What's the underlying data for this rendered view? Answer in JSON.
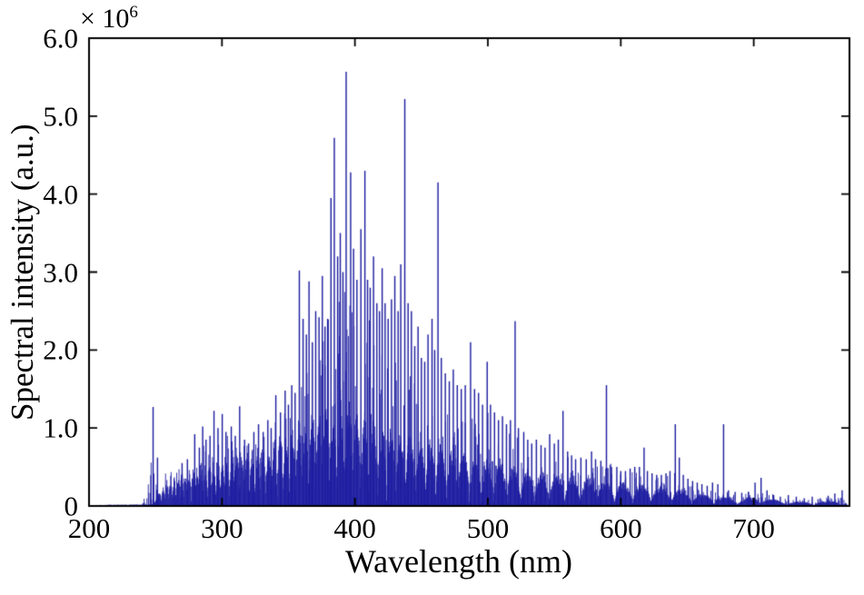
{
  "chart_data": {
    "type": "line",
    "subtype": "emission-spectrum",
    "title": "",
    "xlabel": "Wavelength (nm)",
    "ylabel": "Spectral intensity (a.u.)",
    "xlim": [
      200,
      772
    ],
    "ylim": [
      0,
      6000000
    ],
    "x_ticks": [
      200,
      300,
      400,
      500,
      600,
      700
    ],
    "x_tick_labels": [
      "200",
      "300",
      "400",
      "500",
      "600",
      "700"
    ],
    "y_ticks": [
      0,
      1000000,
      2000000,
      3000000,
      4000000,
      5000000,
      6000000
    ],
    "y_tick_labels": [
      "0",
      "1.0",
      "2.0",
      "3.0",
      "4.0",
      "5.0",
      "6.0"
    ],
    "y_multiplier": {
      "base": "× 10",
      "exponent": "6"
    },
    "grid": false,
    "legend": null,
    "line_color": "#1c1ca0",
    "frame_color": "#000000",
    "background_color": "#ffffff",
    "intensity_unit_scale": 1000000,
    "envelope": {
      "x": [
        204,
        240,
        248,
        252,
        256,
        260,
        270,
        280,
        290,
        300,
        310,
        320,
        330,
        340,
        350,
        360,
        370,
        380,
        390,
        400,
        410,
        420,
        430,
        440,
        450,
        460,
        470,
        480,
        490,
        500,
        510,
        520,
        530,
        540,
        550,
        560,
        570,
        580,
        590,
        600,
        610,
        620,
        630,
        640,
        650,
        660,
        670,
        680,
        690,
        700,
        710,
        720,
        730,
        740,
        750,
        760,
        772
      ],
      "continuum": [
        0.01,
        0.015,
        0.02,
        0.12,
        0.25,
        0.3,
        0.36,
        0.42,
        0.48,
        0.52,
        0.55,
        0.6,
        0.66,
        0.74,
        0.86,
        0.96,
        1.04,
        1.1,
        1.16,
        1.1,
        1.0,
        0.92,
        0.86,
        0.8,
        0.75,
        0.7,
        0.65,
        0.6,
        0.56,
        0.52,
        0.48,
        0.44,
        0.4,
        0.38,
        0.36,
        0.34,
        0.32,
        0.3,
        0.28,
        0.26,
        0.25,
        0.23,
        0.21,
        0.2,
        0.17,
        0.14,
        0.12,
        0.1,
        0.08,
        0.1,
        0.09,
        0.06,
        0.05,
        0.05,
        0.05,
        0.06,
        0.04
      ],
      "spike_max": [
        0.02,
        0.03,
        1.3,
        0.65,
        0.6,
        0.65,
        0.7,
        1.0,
        1.25,
        1.25,
        1.3,
        1.0,
        1.1,
        1.5,
        1.6,
        3.0,
        2.6,
        4.2,
        5.5,
        3.6,
        4.0,
        3.1,
        3.0,
        3.0,
        2.3,
        2.6,
        1.8,
        1.6,
        1.9,
        1.9,
        1.2,
        1.6,
        1.0,
        0.9,
        0.95,
        1.0,
        0.75,
        0.75,
        0.9,
        0.6,
        0.65,
        0.55,
        0.5,
        0.7,
        0.45,
        0.35,
        0.4,
        0.3,
        0.25,
        0.32,
        0.3,
        0.16,
        0.15,
        0.13,
        0.13,
        0.2,
        0.18
      ]
    },
    "peaks": [
      [
        248.2,
        1.27
      ],
      [
        251.5,
        0.62
      ],
      [
        270,
        0.55
      ],
      [
        274,
        0.6
      ],
      [
        279.5,
        0.92
      ],
      [
        283,
        0.75
      ],
      [
        285.5,
        1.02
      ],
      [
        288,
        0.85
      ],
      [
        291,
        0.9
      ],
      [
        294,
        1.22
      ],
      [
        297,
        1.0
      ],
      [
        300.2,
        1.18
      ],
      [
        303,
        0.95
      ],
      [
        307,
        1.02
      ],
      [
        310,
        0.9
      ],
      [
        313.3,
        1.28
      ],
      [
        317,
        0.85
      ],
      [
        320,
        0.8
      ],
      [
        324,
        0.95
      ],
      [
        327.5,
        1.05
      ],
      [
        331,
        0.95
      ],
      [
        334.5,
        1.1
      ],
      [
        337,
        1.0
      ],
      [
        340.5,
        1.42
      ],
      [
        344,
        1.2
      ],
      [
        347.5,
        1.48
      ],
      [
        350,
        1.3
      ],
      [
        352.5,
        1.55
      ],
      [
        355,
        1.45
      ],
      [
        358.2,
        3.02
      ],
      [
        361,
        2.4
      ],
      [
        363.5,
        2.2
      ],
      [
        365.5,
        2.88
      ],
      [
        368,
        2.1
      ],
      [
        370.5,
        2.5
      ],
      [
        373,
        2.42
      ],
      [
        375.5,
        2.95
      ],
      [
        377.5,
        2.3
      ],
      [
        379.5,
        2.4
      ],
      [
        382,
        3.95
      ],
      [
        384.5,
        4.72
      ],
      [
        387,
        3.2
      ],
      [
        389,
        3.5
      ],
      [
        391,
        3.0
      ],
      [
        393.4,
        5.57
      ],
      [
        396.8,
        4.28
      ],
      [
        399,
        3.3
      ],
      [
        401.5,
        2.9
      ],
      [
        404.5,
        3.55
      ],
      [
        407.5,
        4.3
      ],
      [
        409.5,
        2.9
      ],
      [
        411.5,
        2.8
      ],
      [
        414,
        3.2
      ],
      [
        416.5,
        2.6
      ],
      [
        418.5,
        2.5
      ],
      [
        420.5,
        3.05
      ],
      [
        422.7,
        2.6
      ],
      [
        425,
        2.4
      ],
      [
        427.5,
        2.65
      ],
      [
        430,
        2.95
      ],
      [
        432.5,
        2.5
      ],
      [
        434.5,
        3.1
      ],
      [
        437.5,
        5.22
      ],
      [
        440,
        2.6
      ],
      [
        442.5,
        2.5
      ],
      [
        445,
        2.05
      ],
      [
        447.5,
        2.3
      ],
      [
        450,
        1.9
      ],
      [
        452.5,
        1.85
      ],
      [
        455,
        2.2
      ],
      [
        458,
        2.4
      ],
      [
        460,
        2.0
      ],
      [
        462.5,
        4.15
      ],
      [
        465,
        1.9
      ],
      [
        468,
        1.7
      ],
      [
        471,
        1.6
      ],
      [
        474,
        1.75
      ],
      [
        477,
        1.55
      ],
      [
        480,
        1.5
      ],
      [
        483,
        1.55
      ],
      [
        487,
        2.1
      ],
      [
        490,
        1.5
      ],
      [
        493,
        1.45
      ],
      [
        496,
        1.3
      ],
      [
        499.5,
        1.85
      ],
      [
        502,
        1.3
      ],
      [
        505,
        1.2
      ],
      [
        508,
        1.1
      ],
      [
        511,
        1.15
      ],
      [
        514,
        1.05
      ],
      [
        517,
        1.1
      ],
      [
        520.5,
        2.37
      ],
      [
        523,
        1.0
      ],
      [
        527,
        0.95
      ],
      [
        530,
        0.85
      ],
      [
        533,
        0.8
      ],
      [
        536.5,
        0.85
      ],
      [
        540,
        0.78
      ],
      [
        543,
        0.75
      ],
      [
        546.5,
        0.92
      ],
      [
        550,
        0.8
      ],
      [
        553,
        0.85
      ],
      [
        556.5,
        1.22
      ],
      [
        560,
        0.7
      ],
      [
        563,
        0.65
      ],
      [
        566,
        0.6
      ],
      [
        570,
        0.62
      ],
      [
        574,
        0.6
      ],
      [
        578,
        0.7
      ],
      [
        581,
        0.6
      ],
      [
        585,
        0.58
      ],
      [
        589.2,
        1.55
      ],
      [
        593,
        0.5
      ],
      [
        597,
        0.5
      ],
      [
        600,
        0.45
      ],
      [
        603.5,
        0.45
      ],
      [
        607,
        0.48
      ],
      [
        610.5,
        0.5
      ],
      [
        614,
        0.5
      ],
      [
        617.5,
        0.75
      ],
      [
        620,
        0.45
      ],
      [
        623.5,
        0.42
      ],
      [
        627,
        0.4
      ],
      [
        630.5,
        0.4
      ],
      [
        634,
        0.42
      ],
      [
        637,
        0.45
      ],
      [
        641,
        1.05
      ],
      [
        644,
        0.62
      ],
      [
        647,
        0.4
      ],
      [
        650.5,
        0.35
      ],
      [
        654,
        0.32
      ],
      [
        657.5,
        0.3
      ],
      [
        661,
        0.28
      ],
      [
        665,
        0.26
      ],
      [
        669,
        0.3
      ],
      [
        673,
        0.28
      ],
      [
        677.3,
        1.05
      ],
      [
        681,
        0.2
      ],
      [
        686,
        0.18
      ],
      [
        691,
        0.17
      ],
      [
        696,
        0.18
      ],
      [
        701,
        0.3
      ],
      [
        705.5,
        0.36
      ],
      [
        710,
        0.2
      ],
      [
        715,
        0.14
      ],
      [
        720,
        0.12
      ],
      [
        726,
        0.14
      ],
      [
        732,
        0.12
      ],
      [
        738,
        0.1
      ],
      [
        744,
        0.12
      ],
      [
        750,
        0.1
      ],
      [
        756,
        0.13
      ],
      [
        761,
        0.16
      ],
      [
        766.5,
        0.2
      ]
    ]
  }
}
